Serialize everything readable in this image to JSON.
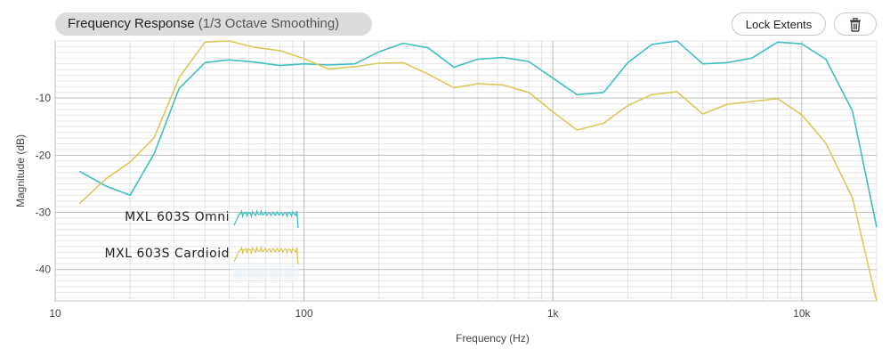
{
  "header": {
    "title": "Frequency Response",
    "subtitle": "(1/3 Octave Smoothing)",
    "lock_label": "Lock Extents",
    "trash_icon": "trash-icon"
  },
  "chart_data": {
    "type": "line",
    "xscale": "log",
    "xlabel": "Frequency (Hz)",
    "ylabel": "Magnitude (dB)",
    "xlim": [
      10,
      20000
    ],
    "ylim": [
      -45.5,
      0
    ],
    "x_ticks": [
      10,
      100,
      1000,
      10000
    ],
    "x_tick_labels": [
      "10",
      "100",
      "1k",
      "10k"
    ],
    "y_ticks": [
      -10,
      -20,
      -30,
      -40
    ],
    "y_tick_labels": [
      "-10",
      "-20",
      "-30",
      "-40"
    ],
    "grid": true,
    "legend_position": "lower-left",
    "series": [
      {
        "name": "MXL 603S Omni",
        "color": "#3fbfbf",
        "x": [
          12.5,
          16,
          20,
          25,
          31.5,
          40,
          50,
          63,
          80,
          100,
          125,
          160,
          200,
          250,
          315,
          400,
          500,
          630,
          800,
          1000,
          1250,
          1600,
          2000,
          2500,
          3150,
          4000,
          5000,
          6300,
          8000,
          10000,
          12500,
          16000,
          20000
        ],
        "values": [
          -22.8,
          -25.4,
          -27,
          -19.7,
          -8.3,
          -3.8,
          -3.3,
          -3.7,
          -4.3,
          -4.0,
          -4.2,
          -4.0,
          -1.9,
          -0.4,
          -1.2,
          -4.6,
          -3.2,
          -2.9,
          -3.6,
          -6.5,
          -9.4,
          -9.0,
          -3.8,
          -0.6,
          0,
          -4.0,
          -3.8,
          -3.0,
          -0.2,
          -0.5,
          -3.2,
          -12.3,
          -32.6
        ]
      },
      {
        "name": "MXL 603S Cardioid",
        "color": "#d8c95a",
        "x": [
          12.5,
          16,
          20,
          25,
          31.5,
          40,
          50,
          63,
          80,
          100,
          125,
          160,
          200,
          250,
          315,
          400,
          500,
          630,
          800,
          1000,
          1250,
          1600,
          2000,
          2500,
          3150,
          4000,
          5000,
          6300,
          8000,
          10000,
          12500,
          16000,
          20000
        ],
        "values": [
          -28.5,
          -24.1,
          -21.2,
          -16.9,
          -6.4,
          -0.2,
          0,
          -1.1,
          -1.7,
          -3.1,
          -4.9,
          -4.5,
          -3.9,
          -3.8,
          -5.8,
          -8.2,
          -7.5,
          -7.7,
          -9.0,
          -12.4,
          -15.6,
          -14.4,
          -11.3,
          -9.4,
          -8.9,
          -12.8,
          -11.1,
          -10.6,
          -10.1,
          -12.9,
          -17.9,
          -27.5,
          -45.6
        ]
      }
    ]
  }
}
